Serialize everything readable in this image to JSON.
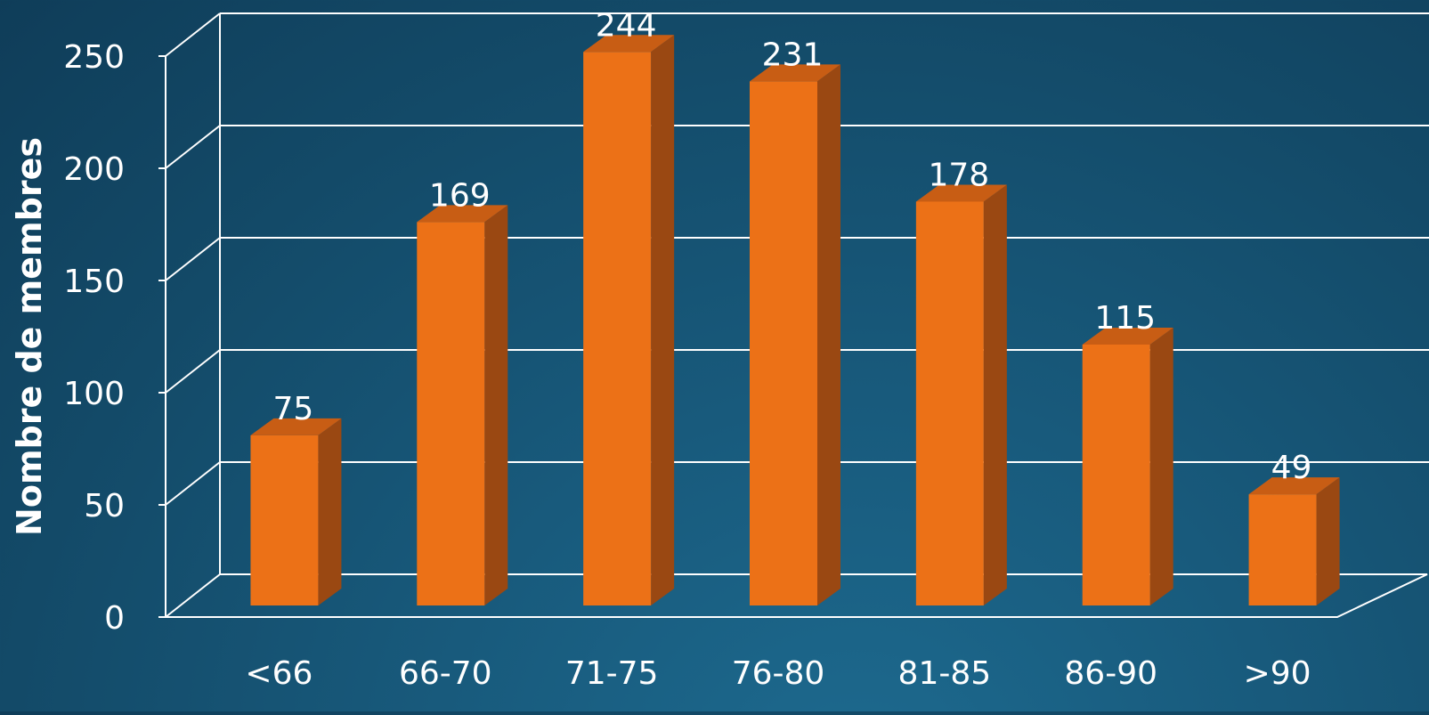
{
  "chart_data": {
    "type": "bar",
    "style": "3d-column",
    "categories": [
      "<66",
      "66-70",
      "71-75",
      "76-80",
      "81-85",
      "86-90",
      ">90"
    ],
    "values": [
      75,
      169,
      244,
      231,
      178,
      115,
      49
    ],
    "data_labels": [
      "75",
      "169",
      "244",
      "231",
      "178",
      "115",
      "49"
    ],
    "ylabel": "Nombre de membres",
    "ylim": [
      0,
      250
    ],
    "yticks": [
      0,
      50,
      100,
      150,
      200,
      250
    ],
    "ytick_labels": [
      "0",
      "50",
      "100",
      "150",
      "200",
      "250"
    ],
    "grid": true,
    "legend": "none"
  },
  "colors": {
    "bar_front": "#ec7117",
    "bar_side": "#9a4812",
    "bar_top": "#c85d14",
    "gridline": "#ffffff",
    "text": "#ffffff"
  }
}
